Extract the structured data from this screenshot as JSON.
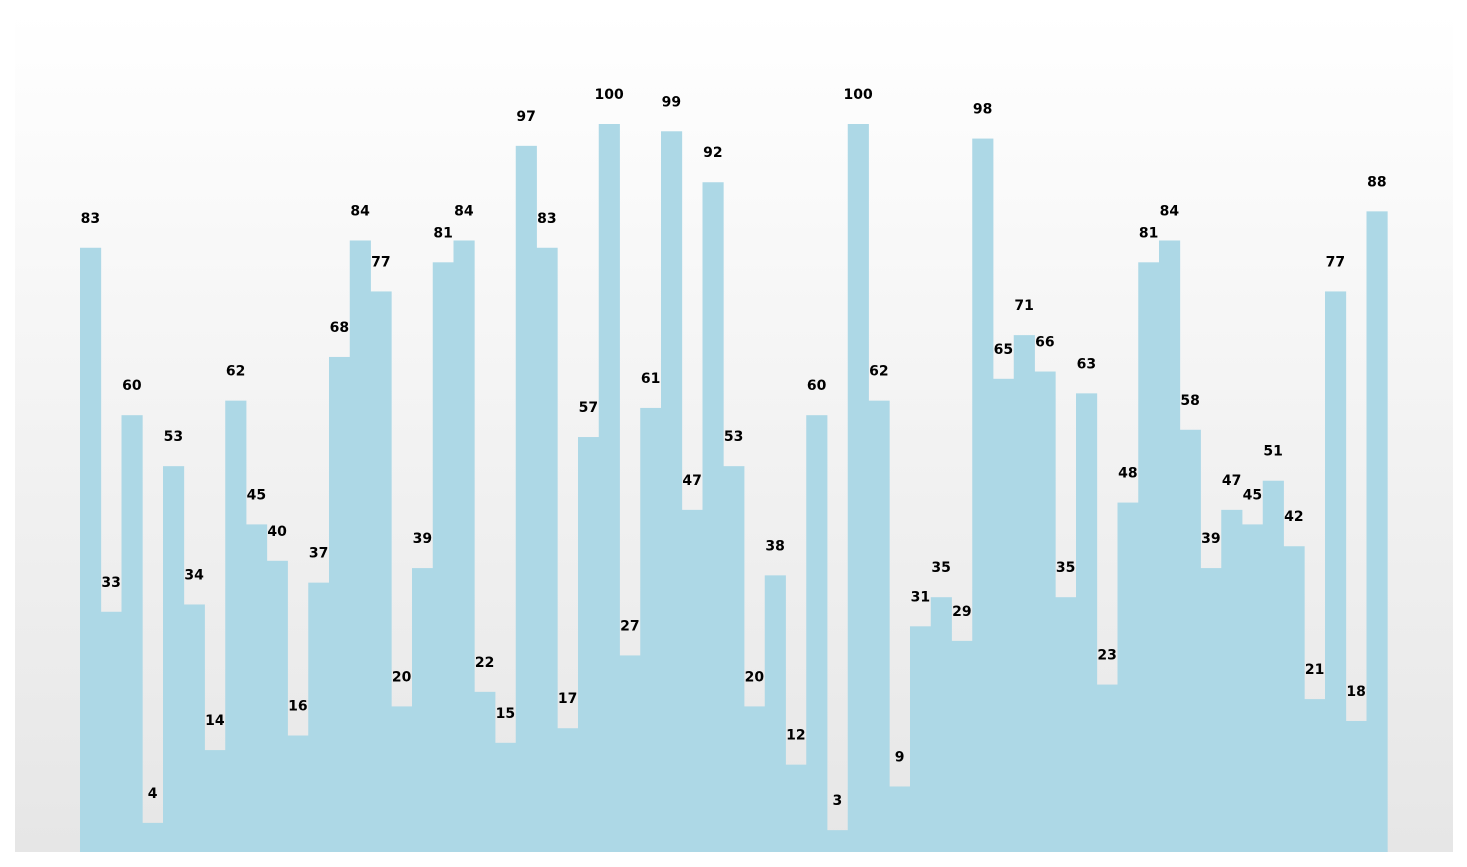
{
  "chart_data": {
    "type": "bar",
    "values": [
      83,
      33,
      60,
      4,
      53,
      34,
      14,
      62,
      45,
      40,
      16,
      37,
      68,
      84,
      77,
      20,
      39,
      81,
      84,
      22,
      15,
      97,
      83,
      17,
      57,
      100,
      27,
      61,
      99,
      47,
      92,
      53,
      20,
      38,
      12,
      60,
      3,
      100,
      62,
      9,
      31,
      35,
      29,
      98,
      65,
      71,
      66,
      35,
      63,
      23,
      48,
      81,
      84,
      58,
      39,
      47,
      45,
      51,
      42,
      21,
      77,
      18,
      88
    ],
    "ylim": [
      0,
      100
    ],
    "xlabel": "",
    "ylabel": "",
    "title": "",
    "grid": false,
    "data_labels": true,
    "colors": {
      "bar": "#add8e6",
      "label": "#000000",
      "background_top": "#ffffff",
      "background_bottom": "#e6e6e6"
    }
  }
}
